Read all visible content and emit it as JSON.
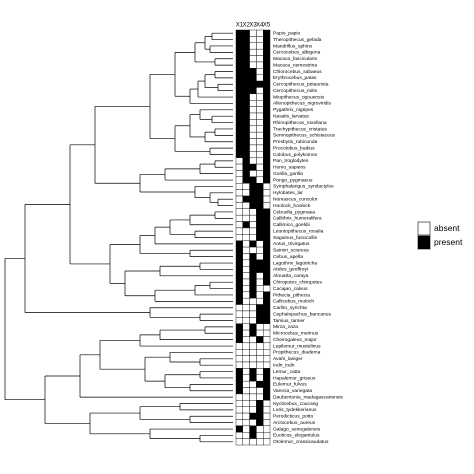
{
  "chart_data": {
    "type": "heatmap",
    "x_categories": [
      "X1",
      "X2",
      "X3",
      "X4",
      "X5"
    ],
    "y_categories": [
      "Papio_papio",
      "Theropithecus_gelada",
      "Mandrillus_sphinx",
      "Cercocebus_albigena",
      "Macaca_fascicularis",
      "Macaca_nemestrina",
      "Chlorocebus_sabaeus",
      "Erythrocebus_patas",
      "Cercopithecus_petaurista",
      "Cercopithecus_mitis",
      "Miopithecus_ogouensis",
      "Allenopithecus_nigroviridis",
      "Pygathrix_nigripes",
      "Nasalis_larvatus",
      "Rhinopithecus_roxellana",
      "Trachypithecus_cristatus",
      "Semnopithecus_schistaceus",
      "Presbytis_rubicunda",
      "Procolobus_badius",
      "Colobus_polykomos",
      "Pan_troglodytes",
      "Homo_sapiens",
      "Gorilla_gorilla",
      "Pongo_pygmaeus",
      "Symphalangus_syndactylus",
      "Hylobates_lar",
      "Nomascus_concolor",
      "Hoolock_hoolock",
      "Cebuella_pygmaea",
      "Callithrix_humeralifera",
      "Callimico_goeldii",
      "Leontopithecus_rosalia",
      "Saguinus_fuscicollis",
      "Aotus_trivirgatus",
      "Saimiri_sciureus",
      "Cebus_apella",
      "Lagothrix_lagotricha",
      "Ateles_geoffroyi",
      "Alouatta_caraya",
      "Chiropotes_chiropotes",
      "Cacajao_calvus",
      "Pithecia_pithecia",
      "Callicebus_moloch",
      "Carlito_syrichta",
      "Cephalopachus_bancanus",
      "Tarsius_tarsier",
      "Mirza_zaza",
      "Microcebus_murinus",
      "Cheirogaleus_major",
      "Lepilemur_mustelinus",
      "Propithecus_diadema",
      "Avahi_laniger",
      "Indri_indri",
      "Lemur_catta",
      "Hapalemur_griseus",
      "Eulemur_fulvus",
      "Varecia_variegata",
      "Daubentonia_madagascariensis",
      "Nycticebus_coucang",
      "Loris_tydekkerianus",
      "Perodicticus_potto",
      "Arctocebus_aureus",
      "Galago_senegalensis",
      "Euoticus_elegantulus",
      "Otolemur_crassicaudatus"
    ],
    "values": [
      [
        1,
        1,
        0,
        0,
        1
      ],
      [
        1,
        1,
        0,
        0,
        1
      ],
      [
        1,
        1,
        0,
        0,
        1
      ],
      [
        1,
        1,
        0,
        0,
        1
      ],
      [
        1,
        1,
        0,
        0,
        1
      ],
      [
        1,
        1,
        0,
        0,
        1
      ],
      [
        1,
        1,
        1,
        0,
        1
      ],
      [
        1,
        1,
        1,
        0,
        1
      ],
      [
        1,
        1,
        1,
        1,
        1
      ],
      [
        1,
        1,
        1,
        0,
        1
      ],
      [
        1,
        1,
        0,
        0,
        1
      ],
      [
        1,
        1,
        0,
        0,
        1
      ],
      [
        1,
        1,
        0,
        0,
        1
      ],
      [
        1,
        1,
        0,
        0,
        1
      ],
      [
        1,
        1,
        0,
        0,
        1
      ],
      [
        1,
        1,
        0,
        0,
        1
      ],
      [
        1,
        1,
        0,
        0,
        1
      ],
      [
        1,
        1,
        0,
        0,
        1
      ],
      [
        1,
        1,
        0,
        0,
        1
      ],
      [
        1,
        1,
        0,
        0,
        1
      ],
      [
        0,
        1,
        0,
        0,
        1
      ],
      [
        0,
        1,
        1,
        0,
        1
      ],
      [
        0,
        1,
        0,
        0,
        1
      ],
      [
        0,
        1,
        1,
        0,
        1
      ],
      [
        0,
        0,
        1,
        1,
        0
      ],
      [
        0,
        0,
        1,
        1,
        0
      ],
      [
        0,
        1,
        1,
        1,
        0
      ],
      [
        0,
        0,
        1,
        1,
        0
      ],
      [
        0,
        0,
        0,
        1,
        1
      ],
      [
        0,
        0,
        0,
        1,
        1
      ],
      [
        0,
        1,
        0,
        1,
        1
      ],
      [
        0,
        0,
        0,
        1,
        1
      ],
      [
        0,
        0,
        0,
        1,
        1
      ],
      [
        1,
        0,
        1,
        0,
        1
      ],
      [
        1,
        0,
        0,
        0,
        1
      ],
      [
        1,
        0,
        1,
        0,
        1
      ],
      [
        1,
        0,
        1,
        1,
        1
      ],
      [
        1,
        0,
        1,
        1,
        1
      ],
      [
        1,
        0,
        1,
        0,
        1
      ],
      [
        1,
        0,
        1,
        0,
        1
      ],
      [
        1,
        0,
        1,
        0,
        0
      ],
      [
        1,
        0,
        1,
        0,
        1
      ],
      [
        1,
        0,
        0,
        0,
        1
      ],
      [
        0,
        0,
        0,
        1,
        1
      ],
      [
        0,
        0,
        0,
        1,
        1
      ],
      [
        0,
        0,
        0,
        1,
        1
      ],
      [
        1,
        0,
        1,
        0,
        0
      ],
      [
        1,
        0,
        1,
        0,
        0
      ],
      [
        1,
        0,
        0,
        1,
        0
      ],
      [
        0,
        0,
        0,
        0,
        0
      ],
      [
        0,
        0,
        0,
        0,
        0
      ],
      [
        0,
        0,
        0,
        0,
        0
      ],
      [
        0,
        0,
        0,
        0,
        0
      ],
      [
        1,
        0,
        1,
        0,
        1
      ],
      [
        1,
        0,
        1,
        0,
        1
      ],
      [
        1,
        0,
        0,
        1,
        1
      ],
      [
        1,
        0,
        0,
        0,
        1
      ],
      [
        0,
        0,
        0,
        0,
        1
      ],
      [
        0,
        0,
        0,
        1,
        0
      ],
      [
        0,
        0,
        0,
        1,
        0
      ],
      [
        0,
        0,
        1,
        1,
        0
      ],
      [
        0,
        0,
        0,
        1,
        0
      ],
      [
        1,
        0,
        1,
        0,
        0
      ],
      [
        0,
        0,
        1,
        0,
        0
      ],
      [
        0,
        0,
        0,
        0,
        0
      ]
    ],
    "legend": [
      {
        "label": "absent",
        "color": "#ffffff"
      },
      {
        "label": "present",
        "color": "#000000"
      }
    ]
  }
}
